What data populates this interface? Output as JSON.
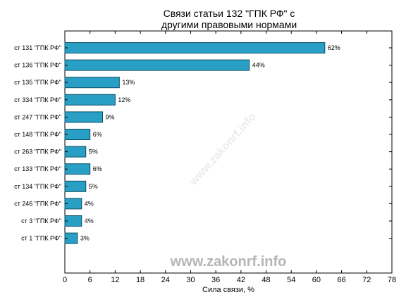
{
  "chart_data": {
    "type": "bar",
    "orientation": "horizontal",
    "title_line1": "Связи статьи 132 \"ГПК РФ\" с",
    "title_line2": "другими правовыми нормами",
    "xlabel": "Сила связи, %",
    "ylabel": "",
    "xlim": [
      0,
      78
    ],
    "xticks": [
      "0",
      "6",
      "12",
      "18",
      "24",
      "30",
      "36",
      "42",
      "48",
      "54",
      "60",
      "66",
      "72",
      "78"
    ],
    "grid": false,
    "bar_color": "#2a9fc5",
    "bar_edge_color": "#0d4f66",
    "categories": [
      "ст 131 \"ГПК РФ\"",
      "ст 136 \"ГПК РФ\"",
      "ст 135 \"ГПК РФ\"",
      "ст 334 \"ГПК РФ\"",
      "ст 247 \"ГПК РФ\"",
      "ст 148 \"ГПК РФ\"",
      "ст 263 \"ГПК РФ\"",
      "ст 133 \"ГПК РФ\"",
      "ст 134 \"ГПК РФ\"",
      "ст 246 \"ГПК РФ\"",
      "ст 3 \"ГПК РФ\"",
      "ст 1 \"ГПК РФ\""
    ],
    "values": [
      62,
      44,
      13,
      12,
      9,
      6,
      5,
      6,
      5,
      4,
      4,
      3
    ],
    "value_labels": [
      "62%",
      "44%",
      "13%",
      "12%",
      "9%",
      "6%",
      "5%",
      "6%",
      "5%",
      "4%",
      "4%",
      "3%"
    ]
  },
  "watermark": "www.zakonrf.info",
  "watermark_diagonal": "www.zakonrf.info"
}
